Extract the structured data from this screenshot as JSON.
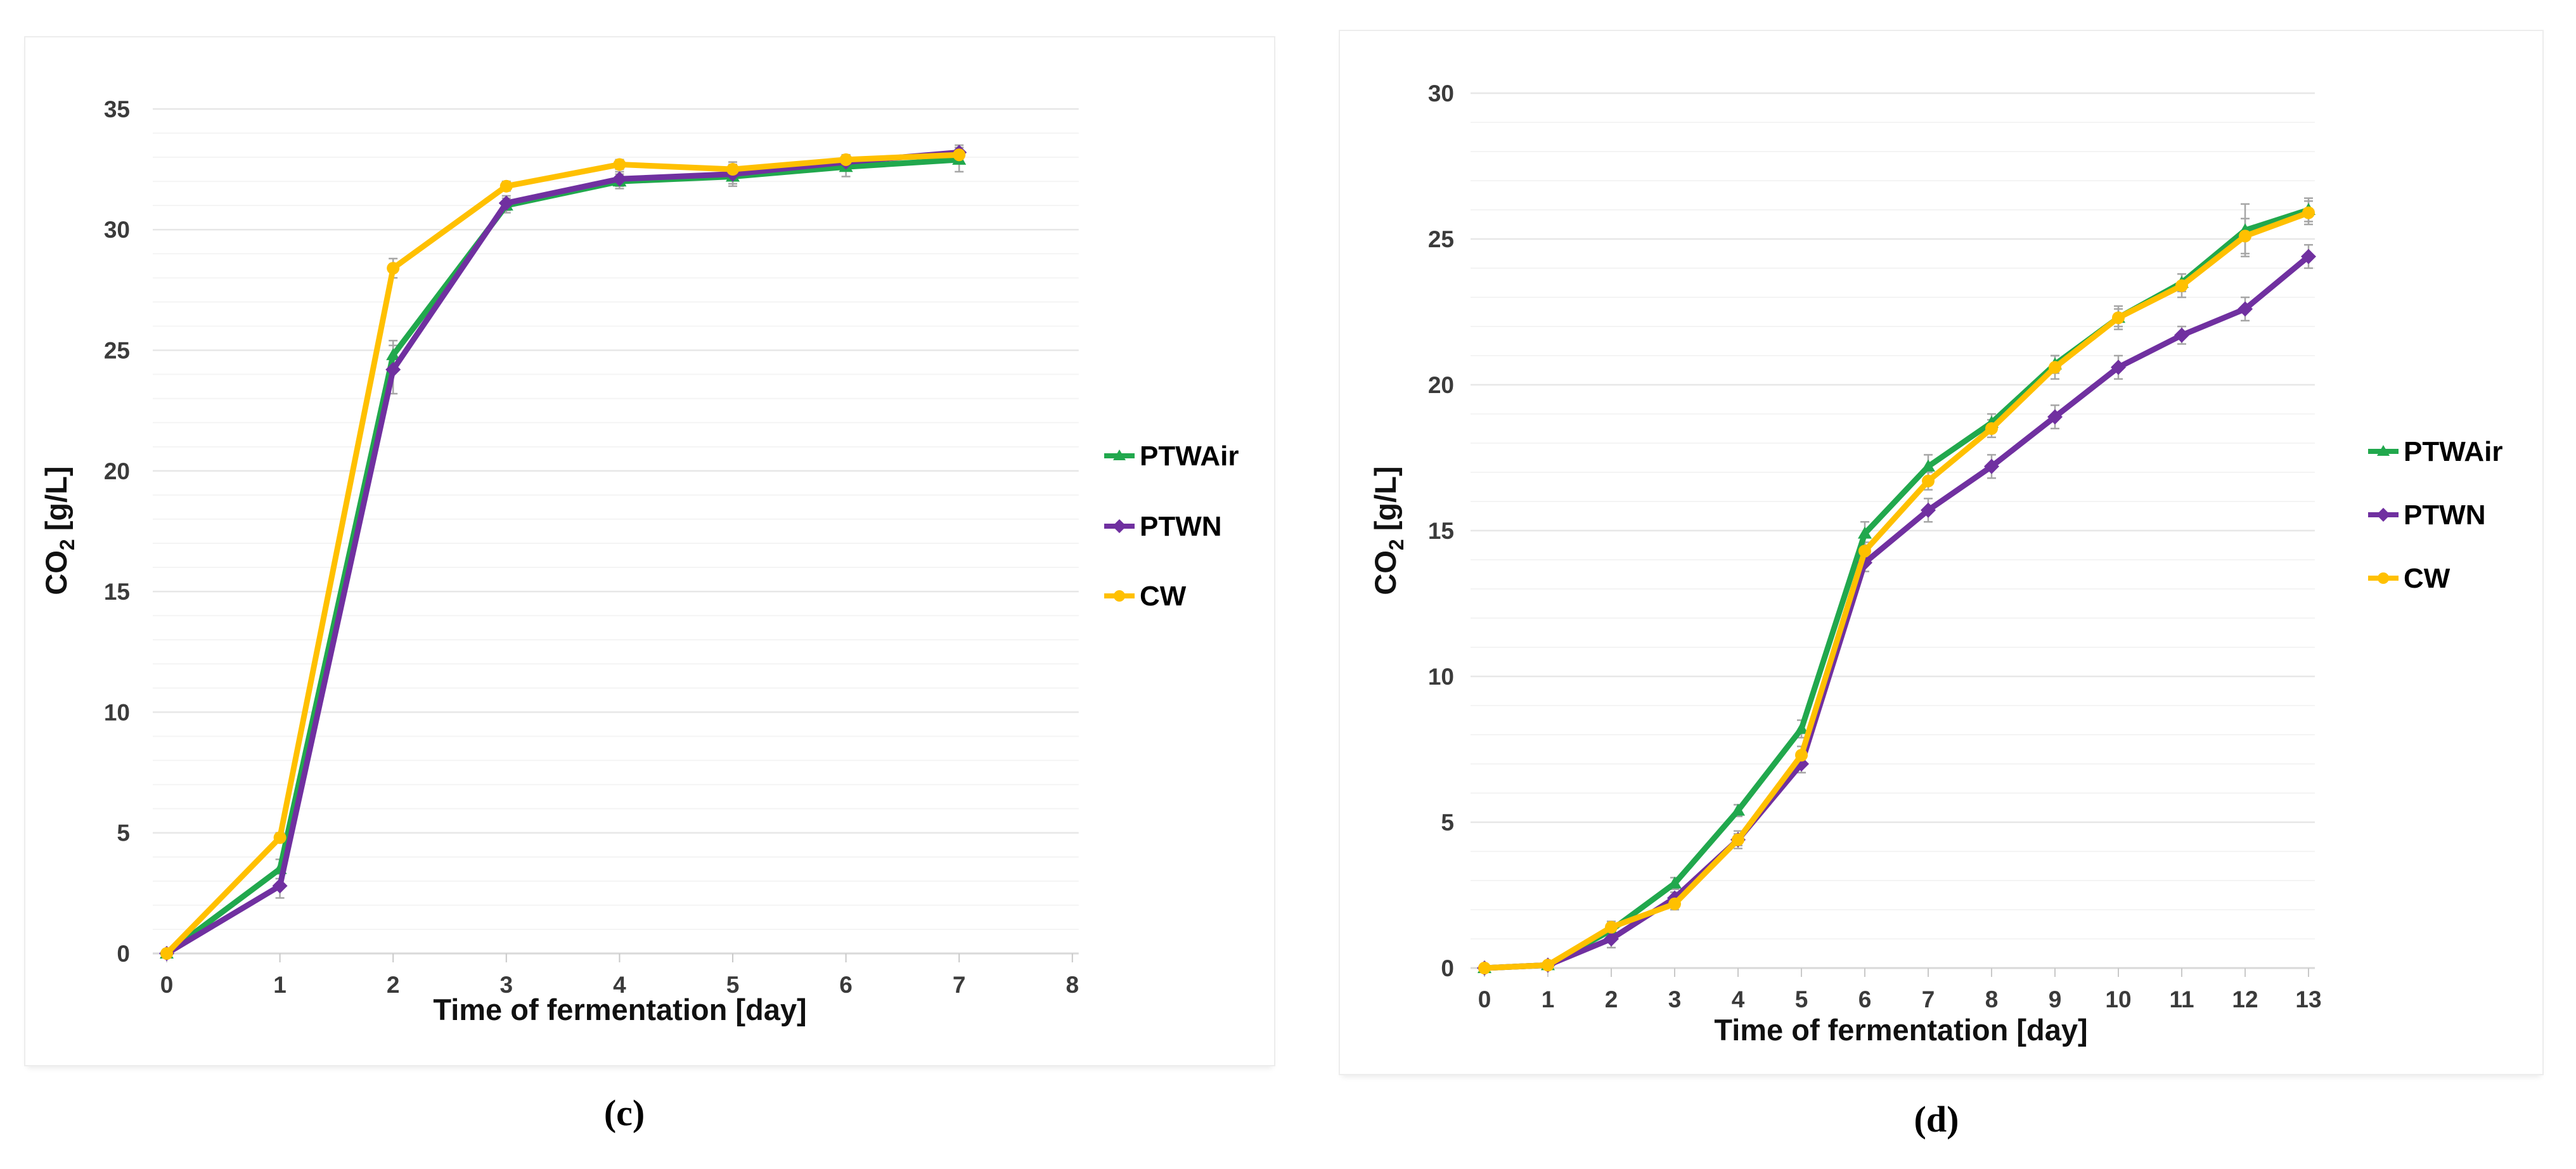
{
  "page": {
    "background": "#ffffff"
  },
  "figure": {
    "panels": [
      {
        "id": "c",
        "caption": "(c)",
        "chart_index": 0
      },
      {
        "id": "d",
        "caption": "(d)",
        "chart_index": 1
      }
    ]
  },
  "colors": {
    "ptwair": "#21A84D",
    "ptwn": "#7030A0",
    "cw": "#FFC000",
    "error_bar": "#a6a6a6",
    "grid_major": "#e7e7e7",
    "grid_minor": "#f4f4f4",
    "axis_line": "#d9d9d9",
    "tick_mark": "#c9c9c9",
    "tick_label": "#3b3b3b",
    "axis_title": "#111111"
  },
  "chart_data": [
    {
      "type": "line",
      "title": "",
      "xlabel": "Time of fermentation [day]",
      "ylabel": {
        "prefix": "CO",
        "sub": "2",
        "suffix": " [g/L]"
      },
      "x": [
        0,
        1,
        2,
        3,
        4,
        5,
        6,
        7
      ],
      "xlim": [
        0,
        8
      ],
      "x_ticks": [
        0,
        1,
        2,
        3,
        4,
        5,
        6,
        7,
        8
      ],
      "ylim": [
        0,
        35
      ],
      "y_major_step": 5,
      "y_minor_step": 1,
      "grid": true,
      "legend_position": "right",
      "series": [
        {
          "name": "PTWAir",
          "color": "#21A84D",
          "marker": "triangle",
          "values": [
            0,
            3.5,
            24.8,
            31.0,
            32.0,
            32.2,
            32.6,
            32.9
          ],
          "errors": [
            0,
            0.4,
            0.6,
            0.3,
            0.3,
            0.4,
            0.4,
            0.5
          ]
        },
        {
          "name": "PTWN",
          "color": "#7030A0",
          "marker": "diamond",
          "values": [
            0,
            2.8,
            24.2,
            31.1,
            32.1,
            32.3,
            32.8,
            33.2
          ],
          "errors": [
            0,
            0.5,
            1.0,
            0.3,
            0.3,
            0.4,
            0.3,
            0.3
          ]
        },
        {
          "name": "CW",
          "color": "#FFC000",
          "marker": "circle",
          "values": [
            0,
            4.8,
            28.4,
            31.8,
            32.7,
            32.5,
            32.9,
            33.1
          ],
          "errors": [
            0,
            0.2,
            0.4,
            0.2,
            0.2,
            0.3,
            0.2,
            0.3
          ]
        }
      ]
    },
    {
      "type": "line",
      "title": "",
      "xlabel": "Time of fermentation [day]",
      "ylabel": {
        "prefix": "CO",
        "sub": "2",
        "suffix": " [g/L]"
      },
      "x": [
        0,
        1,
        2,
        3,
        4,
        5,
        6,
        7,
        8,
        9,
        10,
        11,
        12,
        13
      ],
      "xlim": [
        0,
        13
      ],
      "x_ticks": [
        0,
        1,
        2,
        3,
        4,
        5,
        6,
        7,
        8,
        9,
        10,
        11,
        12,
        13
      ],
      "ylim": [
        0,
        30
      ],
      "y_major_step": 5,
      "y_minor_step": 1,
      "grid": true,
      "legend_position": "right",
      "series": [
        {
          "name": "PTWAir",
          "color": "#21A84D",
          "marker": "triangle",
          "values": [
            0,
            0.1,
            1.3,
            2.9,
            5.4,
            8.2,
            14.9,
            17.2,
            18.7,
            20.7,
            22.3,
            23.5,
            25.3,
            26.0
          ],
          "errors": [
            0,
            0,
            0.2,
            0.2,
            0.2,
            0.3,
            0.4,
            0.4,
            0.3,
            0.3,
            0.3,
            0.3,
            0.9,
            0.4
          ]
        },
        {
          "name": "PTWN",
          "color": "#7030A0",
          "marker": "diamond",
          "values": [
            0,
            0.1,
            1.0,
            2.4,
            4.4,
            7.0,
            13.9,
            15.7,
            17.2,
            18.9,
            20.6,
            21.7,
            22.6,
            24.4
          ],
          "errors": [
            0,
            0,
            0.3,
            0.2,
            0.2,
            0.3,
            0.3,
            0.4,
            0.4,
            0.4,
            0.4,
            0.3,
            0.4,
            0.4
          ]
        },
        {
          "name": "CW",
          "color": "#FFC000",
          "marker": "circle",
          "values": [
            0,
            0.1,
            1.4,
            2.2,
            4.4,
            7.3,
            14.3,
            16.7,
            18.5,
            20.6,
            22.3,
            23.4,
            25.1,
            25.9
          ],
          "errors": [
            0,
            0,
            0.2,
            0.2,
            0.3,
            0.3,
            0.3,
            0.3,
            0.3,
            0.4,
            0.4,
            0.4,
            0.6,
            0.4
          ]
        }
      ]
    }
  ]
}
